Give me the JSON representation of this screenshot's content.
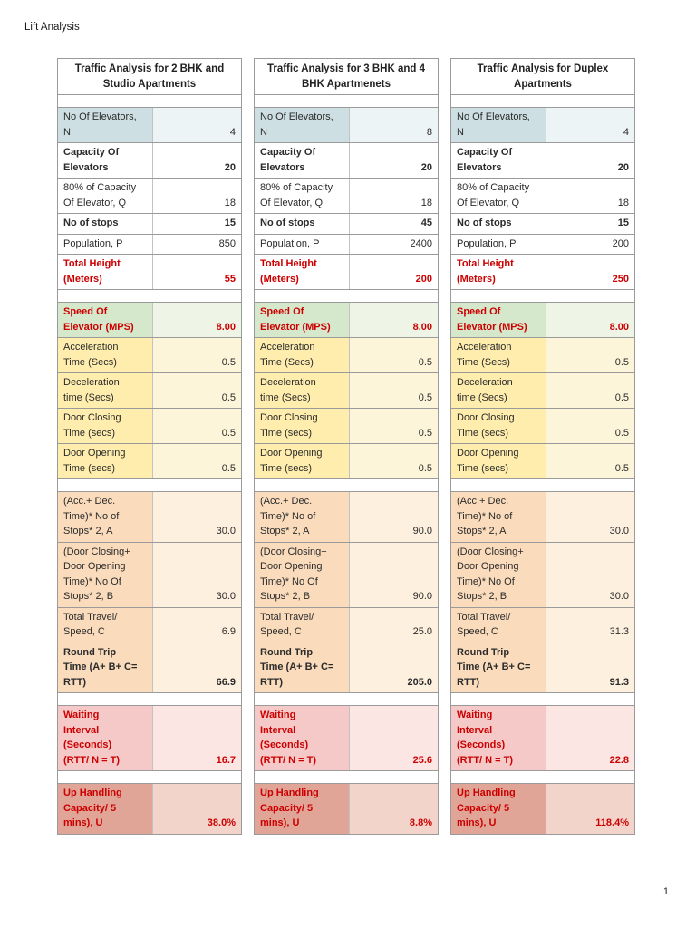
{
  "page": {
    "title": "Lift Analysis",
    "page_number": "1"
  },
  "row_defs": [
    {
      "label": "No Of Elevators,\nN",
      "style": "blue",
      "bold": false,
      "red": false,
      "gap_before": true
    },
    {
      "label": "Capacity Of\nElevators",
      "style": "plain",
      "bold": true,
      "red": false,
      "gap_before": false
    },
    {
      "label": "80% of Capacity\nOf Elevator, Q",
      "style": "plain",
      "bold": false,
      "red": false,
      "gap_before": false
    },
    {
      "label": "No of stops",
      "style": "plain",
      "bold": true,
      "red": false,
      "gap_before": false
    },
    {
      "label": "Population, P",
      "style": "plain",
      "bold": false,
      "red": false,
      "gap_before": false
    },
    {
      "label": "Total Height\n(Meters)",
      "style": "plain",
      "bold": true,
      "red": true,
      "gap_before": false
    },
    {
      "label": "Speed Of\nElevator  (MPS)",
      "style": "green",
      "bold": true,
      "red": true,
      "gap_before": true
    },
    {
      "label": "Acceleration\nTime (Secs)",
      "style": "yellow",
      "bold": false,
      "red": false,
      "gap_before": false
    },
    {
      "label": "Deceleration\ntime (Secs)",
      "style": "yellow",
      "bold": false,
      "red": false,
      "gap_before": false
    },
    {
      "label": "Door Closing\nTime (secs)",
      "style": "yellow",
      "bold": false,
      "red": false,
      "gap_before": false
    },
    {
      "label": "Door Opening\nTime (secs)",
      "style": "yellow",
      "bold": false,
      "red": false,
      "gap_before": false
    },
    {
      "label": "(Acc.+ Dec.\nTime)* No of\nStops* 2, A",
      "style": "peach",
      "bold": false,
      "red": false,
      "gap_before": true
    },
    {
      "label": "(Door Closing+\nDoor Opening\nTime)* No Of\nStops* 2, B",
      "style": "peach",
      "bold": false,
      "red": false,
      "gap_before": false
    },
    {
      "label": "Total Travel/\nSpeed, C",
      "style": "peach",
      "bold": false,
      "red": false,
      "gap_before": false
    },
    {
      "label": "Round Trip\nTime (A+ B+ C=\nRTT)",
      "style": "peach",
      "bold": true,
      "red": false,
      "gap_before": false
    },
    {
      "label": "Waiting\nInterval\n(Seconds)\n(RTT/ N = T)",
      "style": "pink",
      "bold": true,
      "red": true,
      "gap_before": true
    },
    {
      "label": "Up Handling\nCapacity/ 5\nmins), U",
      "style": "darkpink",
      "bold": true,
      "red": true,
      "gap_before": true
    }
  ],
  "tables": [
    {
      "title": "Traffic Analysis for 2 BHK and\nStudio Apartments",
      "values": [
        "4",
        "20",
        "18",
        "15",
        "850",
        "55",
        "8.00",
        "0.5",
        "0.5",
        "0.5",
        "0.5",
        "30.0",
        "30.0",
        "6.9",
        "66.9",
        "16.7",
        "38.0%"
      ]
    },
    {
      "title": "Traffic Analysis for 3 BHK and 4\nBHK Apartmenets",
      "values": [
        "8",
        "20",
        "18",
        "45",
        "2400",
        "200",
        "8.00",
        "0.5",
        "0.5",
        "0.5",
        "0.5",
        "90.0",
        "90.0",
        "25.0",
        "205.0",
        "25.6",
        "8.8%"
      ]
    },
    {
      "title": "Traffic Analysis for Duplex\nApartments",
      "values": [
        "4",
        "20",
        "18",
        "15",
        "200",
        "250",
        "8.00",
        "0.5",
        "0.5",
        "0.5",
        "0.5",
        "30.0",
        "30.0",
        "31.3",
        "91.3",
        "22.8",
        "118.4%"
      ]
    }
  ]
}
